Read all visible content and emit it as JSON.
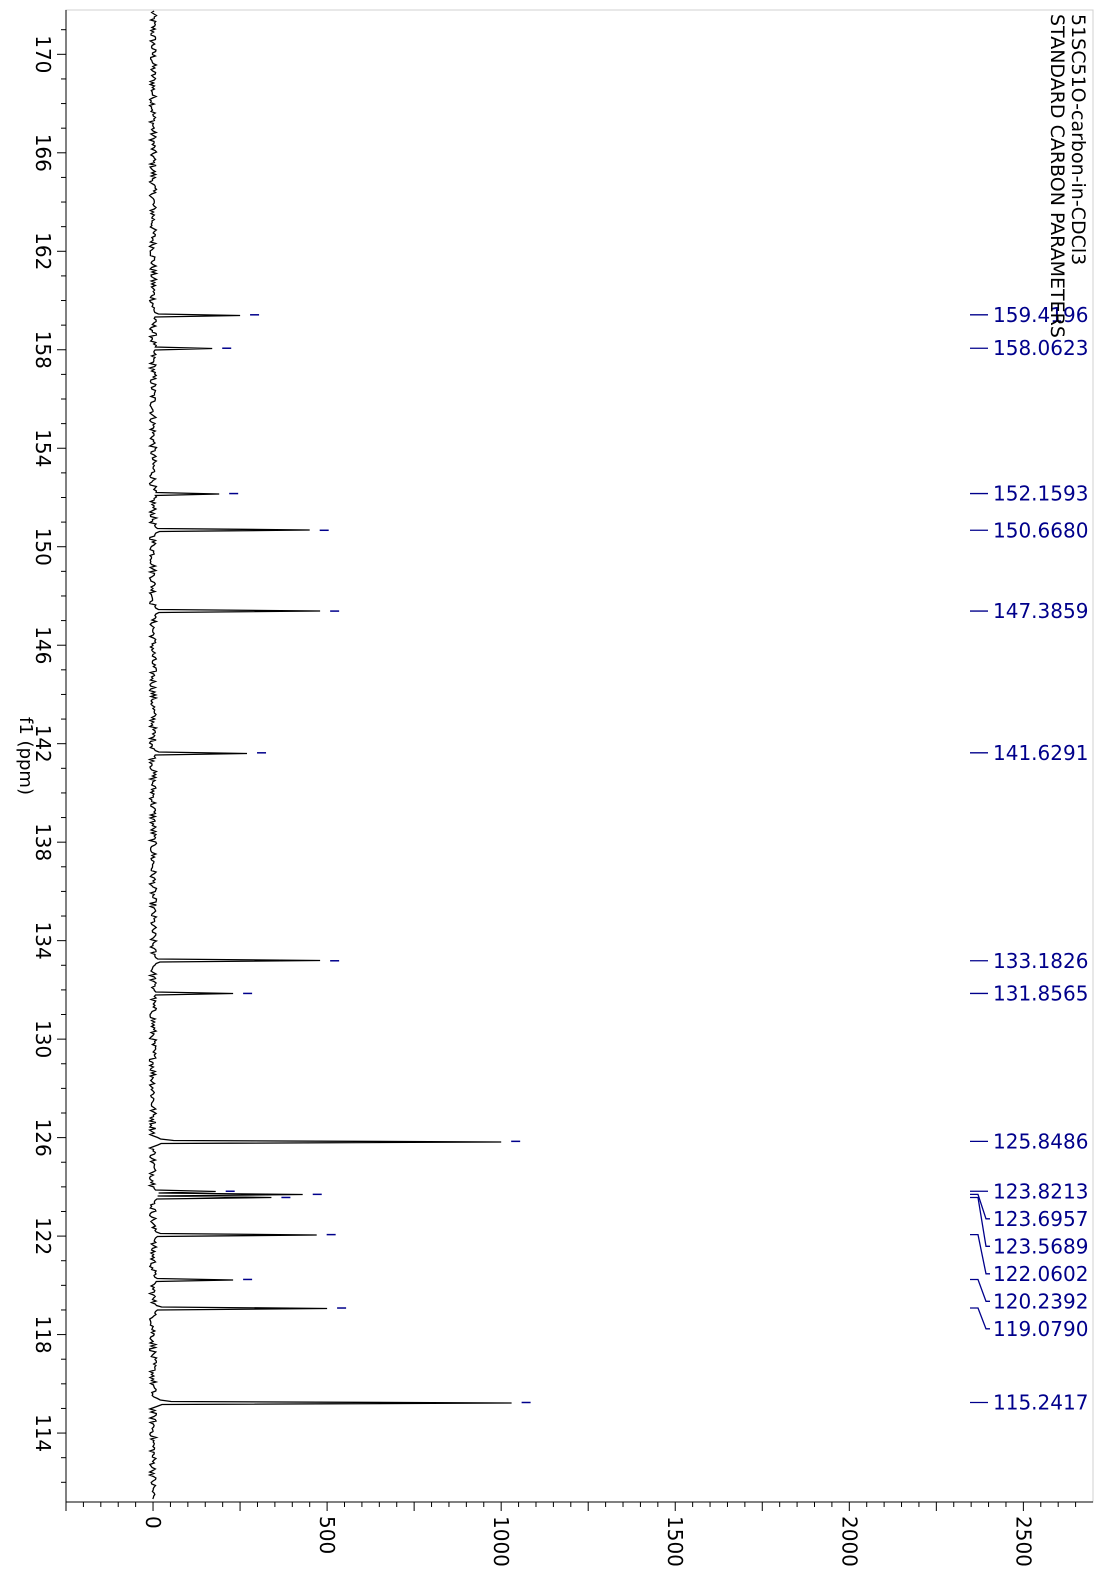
{
  "chart_data": {
    "type": "line",
    "title": "51SC51O-carbon-in-CDCl3",
    "subtitle": "STANDARD CARBON PARAMETERS",
    "xlabel": "f1 (ppm)",
    "ylabel": "",
    "x_range_ppm": [
      171.8,
      111.2
    ],
    "y_range": [
      -250,
      2700
    ],
    "x_ticks": [
      170,
      166,
      162,
      158,
      154,
      150,
      146,
      142,
      138,
      134,
      130,
      126,
      122,
      118,
      114
    ],
    "y_ticks": [
      0,
      500,
      1000,
      1500,
      2000,
      2500
    ],
    "grid": false,
    "line_color": "#000000",
    "label_color": "#00008b",
    "peaks": [
      {
        "ppm": 159.4196,
        "height": 250,
        "label": "159.4196"
      },
      {
        "ppm": 158.0623,
        "height": 170,
        "label": "158.0623"
      },
      {
        "ppm": 152.1593,
        "height": 190,
        "label": "152.1593"
      },
      {
        "ppm": 150.668,
        "height": 450,
        "label": "150.6680"
      },
      {
        "ppm": 147.3859,
        "height": 480,
        "label": "147.3859"
      },
      {
        "ppm": 141.6291,
        "height": 270,
        "label": "141.6291"
      },
      {
        "ppm": 133.1826,
        "height": 480,
        "label": "133.1826"
      },
      {
        "ppm": 131.8565,
        "height": 230,
        "label": "131.8565"
      },
      {
        "ppm": 125.8486,
        "height": 1000,
        "label": "125.8486"
      },
      {
        "ppm": 123.8213,
        "height": 180,
        "label": "123.8213"
      },
      {
        "ppm": 123.6957,
        "height": 430,
        "label": "123.6957"
      },
      {
        "ppm": 123.5689,
        "height": 340,
        "label": "123.5689"
      },
      {
        "ppm": 122.0602,
        "height": 470,
        "label": "122.0602"
      },
      {
        "ppm": 120.2392,
        "height": 230,
        "label": "120.2392"
      },
      {
        "ppm": 119.079,
        "height": 500,
        "label": "119.0790"
      },
      {
        "ppm": 115.2417,
        "height": 1030,
        "label": "115.2417"
      }
    ]
  }
}
